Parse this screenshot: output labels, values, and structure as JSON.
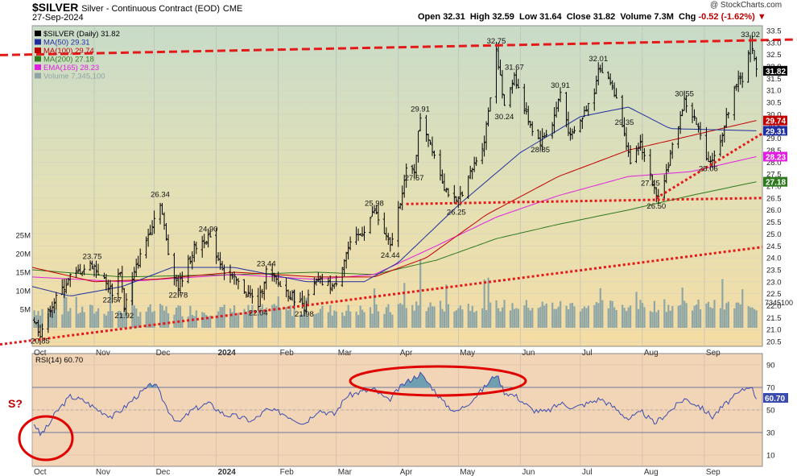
{
  "header": {
    "symbol": "$SILVER",
    "name": "Silver - Continuous Contract (EOD)",
    "exchange": "CME",
    "date": "27-Sep-2024",
    "open_label": "Open",
    "open": "32.31",
    "high_label": "High",
    "high": "32.59",
    "low_label": "Low",
    "low": "31.64",
    "close_label": "Close",
    "close": "31.82",
    "volume_label": "Volume",
    "volume": "7.3M",
    "chg_label": "Chg",
    "chg": "-0.52 (-1.62%)",
    "source": "@ StockCharts.com"
  },
  "chart_data": [
    {
      "type": "candlestick",
      "title": "$SILVER (Daily) 31.82",
      "legend": [
        {
          "label": "$SILVER (Daily) 31.82",
          "color": "#000000"
        },
        {
          "label": "MA(50) 29.31",
          "color": "#1f2fa0"
        },
        {
          "label": "MA(100) 29.74",
          "color": "#c00000"
        },
        {
          "label": "MA(200) 27.18",
          "color": "#2f7a1f"
        },
        {
          "label": "EMA(165) 28.23",
          "color": "#e020e0"
        },
        {
          "label": "Volume 7,345,100",
          "color": "#8fa6a6"
        }
      ],
      "legend_position": "top-left",
      "x_labels": [
        "Oct",
        "Nov",
        "Dec",
        "2024",
        "Feb",
        "Mar",
        "Apr",
        "May",
        "Jun",
        "Jul",
        "Aug",
        "Sep"
      ],
      "x_range": [
        "2023-10-01",
        "2024-09-30"
      ],
      "ylim": [
        20.3,
        33.7
      ],
      "y_ticks": [
        20.5,
        21.0,
        21.5,
        22.0,
        22.5,
        23.0,
        23.5,
        24.0,
        24.5,
        25.0,
        25.5,
        26.0,
        26.5,
        27.0,
        27.5,
        28.0,
        28.5,
        29.0,
        29.5,
        30.0,
        30.5,
        31.0,
        31.5,
        32.0,
        32.5,
        33.0,
        33.5
      ],
      "y_tick_labels": [
        "20.5",
        "21.0",
        "21.5",
        "22.0",
        "22.5",
        "23.0",
        "23.5",
        "24.0",
        "24.5",
        "25.0",
        "25.5",
        "26.0",
        "26.5",
        "27.0",
        "27.5",
        "28.0",
        "28.5",
        "29.0",
        "29.5",
        "30.0",
        "30.5",
        "31.0",
        "31.5",
        "32.0",
        "32.5",
        "33.0",
        "33.5"
      ],
      "volume_axis_labels": [
        "25M",
        "20M",
        "15M",
        "10M",
        "5M"
      ],
      "volume_ticks": [
        25,
        20,
        15,
        10,
        5
      ],
      "volume_last_label": "7345100",
      "price_keypoints": [
        [
          "2023-10-02",
          21.4
        ],
        [
          "2023-10-05",
          20.85
        ],
        [
          "2023-10-10",
          21.9
        ],
        [
          "2023-10-20",
          23.2
        ],
        [
          "2023-10-31",
          23.75
        ],
        [
          "2023-11-10",
          22.57
        ],
        [
          "2023-11-14",
          23.5
        ],
        [
          "2023-11-16",
          21.92
        ],
        [
          "2023-11-22",
          23.6
        ],
        [
          "2023-12-04",
          26.34
        ],
        [
          "2023-12-08",
          24.2
        ],
        [
          "2023-12-13",
          22.78
        ],
        [
          "2023-12-21",
          24.4
        ],
        [
          "2023-12-28",
          24.9
        ],
        [
          "2024-01-05",
          23.44
        ],
        [
          "2024-01-10",
          23.1
        ],
        [
          "2024-01-22",
          22.04
        ],
        [
          "2024-01-26",
          23.44
        ],
        [
          "2024-02-05",
          22.6
        ],
        [
          "2024-02-14",
          21.98
        ],
        [
          "2024-02-20",
          23.0
        ],
        [
          "2024-02-29",
          22.8
        ],
        [
          "2024-03-07",
          24.4
        ],
        [
          "2024-03-15",
          25.2
        ],
        [
          "2024-03-20",
          25.98
        ],
        [
          "2024-03-28",
          24.44
        ],
        [
          "2024-04-05",
          27.6
        ],
        [
          "2024-04-09",
          27.67
        ],
        [
          "2024-04-12",
          29.91
        ],
        [
          "2024-04-18",
          28.6
        ],
        [
          "2024-04-24",
          27.0
        ],
        [
          "2024-04-30",
          26.25
        ],
        [
          "2024-05-07",
          27.5
        ],
        [
          "2024-05-14",
          28.9
        ],
        [
          "2024-05-20",
          32.75
        ],
        [
          "2024-05-24",
          30.24
        ],
        [
          "2024-05-29",
          31.67
        ],
        [
          "2024-06-03",
          30.2
        ],
        [
          "2024-06-07",
          29.4
        ],
        [
          "2024-06-11",
          28.85
        ],
        [
          "2024-06-17",
          29.6
        ],
        [
          "2024-06-21",
          30.91
        ],
        [
          "2024-06-26",
          29.0
        ],
        [
          "2024-07-01",
          29.7
        ],
        [
          "2024-07-08",
          31.0
        ],
        [
          "2024-07-10",
          32.01
        ],
        [
          "2024-07-17",
          31.2
        ],
        [
          "2024-07-23",
          29.35
        ],
        [
          "2024-07-26",
          27.8
        ],
        [
          "2024-07-31",
          28.8
        ],
        [
          "2024-08-05",
          27.45
        ],
        [
          "2024-08-08",
          26.5
        ],
        [
          "2024-08-13",
          27.6
        ],
        [
          "2024-08-19",
          29.6
        ],
        [
          "2024-08-22",
          30.55
        ],
        [
          "2024-08-27",
          29.8
        ],
        [
          "2024-09-03",
          28.06
        ],
        [
          "2024-09-06",
          28.2
        ],
        [
          "2024-09-11",
          29.5
        ],
        [
          "2024-09-16",
          31.2
        ],
        [
          "2024-09-20",
          31.5
        ],
        [
          "2024-09-24",
          33.02
        ],
        [
          "2024-09-27",
          31.82
        ]
      ],
      "ma50_keypoints": [
        [
          "2023-10-01",
          22.8
        ],
        [
          "2023-10-20",
          22.4
        ],
        [
          "2023-11-15",
          22.8
        ],
        [
          "2023-12-10",
          23.6
        ],
        [
          "2024-01-10",
          23.6
        ],
        [
          "2024-02-15",
          23.0
        ],
        [
          "2024-03-15",
          23.0
        ],
        [
          "2024-04-01",
          23.8
        ],
        [
          "2024-05-01",
          26.2
        ],
        [
          "2024-06-01",
          28.4
        ],
        [
          "2024-07-01",
          29.9
        ],
        [
          "2024-07-25",
          30.3
        ],
        [
          "2024-08-15",
          29.4
        ],
        [
          "2024-09-27",
          29.31
        ]
      ],
      "ma100_keypoints": [
        [
          "2023-10-01",
          23.6
        ],
        [
          "2023-11-01",
          23.0
        ],
        [
          "2023-12-01",
          23.1
        ],
        [
          "2024-01-10",
          23.4
        ],
        [
          "2024-02-20",
          23.2
        ],
        [
          "2024-03-20",
          23.2
        ],
        [
          "2024-04-15",
          24.0
        ],
        [
          "2024-05-15",
          25.8
        ],
        [
          "2024-06-20",
          27.4
        ],
        [
          "2024-07-25",
          28.5
        ],
        [
          "2024-08-25",
          29.1
        ],
        [
          "2024-09-27",
          29.74
        ]
      ],
      "ma200_keypoints": [
        [
          "2023-10-01",
          23.5
        ],
        [
          "2023-11-15",
          23.2
        ],
        [
          "2024-01-10",
          23.3
        ],
        [
          "2024-02-20",
          23.4
        ],
        [
          "2024-03-20",
          23.3
        ],
        [
          "2024-04-20",
          23.9
        ],
        [
          "2024-05-20",
          24.8
        ],
        [
          "2024-06-20",
          25.4
        ],
        [
          "2024-07-25",
          26.0
        ],
        [
          "2024-08-25",
          26.6
        ],
        [
          "2024-09-27",
          27.18
        ]
      ],
      "ema165_keypoints": [
        [
          "2023-10-01",
          23.2
        ],
        [
          "2023-11-15",
          23.0
        ],
        [
          "2024-01-10",
          23.3
        ],
        [
          "2024-02-20",
          23.1
        ],
        [
          "2024-03-20",
          23.3
        ],
        [
          "2024-04-20",
          24.5
        ],
        [
          "2024-05-20",
          25.7
        ],
        [
          "2024-06-20",
          26.6
        ],
        [
          "2024-07-25",
          27.4
        ],
        [
          "2024-08-25",
          27.6
        ],
        [
          "2024-09-27",
          28.23
        ]
      ],
      "trendlines": [
        {
          "from": [
            "2023-10-01",
            32.5
          ],
          "to": [
            "2024-09-30",
            33.1
          ]
        },
        {
          "from": [
            "2023-10-01",
            20.55
          ],
          "to": [
            "2024-09-30",
            24.45
          ]
        },
        {
          "from": [
            "2024-04-05",
            26.25
          ],
          "to": [
            "2024-09-30",
            26.5
          ]
        },
        {
          "from": [
            "2024-08-08",
            26.5
          ],
          "to": [
            "2024-09-30",
            29.2
          ]
        }
      ],
      "data_labels": [
        {
          "date": "2023-10-05",
          "value": 20.85,
          "text": "20.85",
          "pos": "below"
        },
        {
          "date": "2023-10-31",
          "value": 23.75,
          "text": "23.75",
          "pos": "above"
        },
        {
          "date": "2023-11-10",
          "value": 22.57,
          "text": "22.57",
          "pos": "below"
        },
        {
          "date": "2023-11-16",
          "value": 21.92,
          "text": "21.92",
          "pos": "below"
        },
        {
          "date": "2023-12-04",
          "value": 26.34,
          "text": "26.34",
          "pos": "above"
        },
        {
          "date": "2023-12-13",
          "value": 22.78,
          "text": "22.78",
          "pos": "below"
        },
        {
          "date": "2023-12-28",
          "value": 24.9,
          "text": "24.90",
          "pos": "above"
        },
        {
          "date": "2024-01-26",
          "value": 23.44,
          "text": "23.44",
          "pos": "above"
        },
        {
          "date": "2024-01-22",
          "value": 22.04,
          "text": "22.04",
          "pos": "below"
        },
        {
          "date": "2024-02-14",
          "value": 21.98,
          "text": "21.98",
          "pos": "below"
        },
        {
          "date": "2024-03-20",
          "value": 25.98,
          "text": "25.98",
          "pos": "above"
        },
        {
          "date": "2024-03-28",
          "value": 24.44,
          "text": "24.44",
          "pos": "below"
        },
        {
          "date": "2024-04-09",
          "value": 27.67,
          "text": "27.67",
          "pos": "below"
        },
        {
          "date": "2024-04-12",
          "value": 29.91,
          "text": "29.91",
          "pos": "above"
        },
        {
          "date": "2024-04-30",
          "value": 26.25,
          "text": "26.25",
          "pos": "below"
        },
        {
          "date": "2024-05-20",
          "value": 32.75,
          "text": "32.75",
          "pos": "above"
        },
        {
          "date": "2024-05-24",
          "value": 30.24,
          "text": "30.24",
          "pos": "below"
        },
        {
          "date": "2024-05-29",
          "value": 31.67,
          "text": "31.67",
          "pos": "above"
        },
        {
          "date": "2024-06-11",
          "value": 28.85,
          "text": "28.85",
          "pos": "below"
        },
        {
          "date": "2024-06-21",
          "value": 30.91,
          "text": "30.91",
          "pos": "above"
        },
        {
          "date": "2024-07-10",
          "value": 32.01,
          "text": "32.01",
          "pos": "above"
        },
        {
          "date": "2024-07-23",
          "value": 29.35,
          "text": "29.35",
          "pos": "above"
        },
        {
          "date": "2024-08-05",
          "value": 27.45,
          "text": "27.45",
          "pos": "below"
        },
        {
          "date": "2024-08-08",
          "value": 26.5,
          "text": "26.50",
          "pos": "below"
        },
        {
          "date": "2024-08-22",
          "value": 30.55,
          "text": "30.55",
          "pos": "above"
        },
        {
          "date": "2024-09-03",
          "value": 28.06,
          "text": "28.06",
          "pos": "below"
        },
        {
          "date": "2024-09-24",
          "value": 33.02,
          "text": "33.02",
          "pos": "above"
        }
      ],
      "axis_badges": [
        {
          "text": "31.82",
          "value": 31.82,
          "color": "#000000"
        },
        {
          "text": "29.74",
          "value": 29.74,
          "color": "#c00000"
        },
        {
          "text": "29.31",
          "value": 29.31,
          "color": "#1f2fa0"
        },
        {
          "text": "28.23",
          "value": 28.23,
          "color": "#e020e0"
        },
        {
          "text": "27.18",
          "value": 27.18,
          "color": "#2f7a1f"
        }
      ]
    },
    {
      "type": "line",
      "title": "RSI(14) 60.70",
      "ylim": [
        0,
        100
      ],
      "y_ticks": [
        10,
        30,
        50,
        70,
        90
      ],
      "y_tick_labels": [
        "10",
        "30",
        "50",
        "70",
        "90"
      ],
      "overbought": 70,
      "oversold": 30,
      "last_value": 60.7,
      "last_label": "60.70",
      "rsi_keypoints": [
        [
          "2023-10-02",
          38
        ],
        [
          "2023-10-05",
          28
        ],
        [
          "2023-10-09",
          36
        ],
        [
          "2023-10-13",
          48
        ],
        [
          "2023-10-20",
          62
        ],
        [
          "2023-10-27",
          58
        ],
        [
          "2023-11-03",
          50
        ],
        [
          "2023-11-10",
          44
        ],
        [
          "2023-11-16",
          52
        ],
        [
          "2023-11-22",
          62
        ],
        [
          "2023-12-01",
          74
        ],
        [
          "2023-12-08",
          50
        ],
        [
          "2023-12-13",
          38
        ],
        [
          "2023-12-20",
          50
        ],
        [
          "2023-12-28",
          56
        ],
        [
          "2024-01-05",
          46
        ],
        [
          "2024-01-12",
          44
        ],
        [
          "2024-01-19",
          40
        ],
        [
          "2024-01-26",
          50
        ],
        [
          "2024-02-02",
          48
        ],
        [
          "2024-02-09",
          42
        ],
        [
          "2024-02-14",
          38
        ],
        [
          "2024-02-21",
          50
        ],
        [
          "2024-02-29",
          46
        ],
        [
          "2024-03-06",
          62
        ],
        [
          "2024-03-13",
          66
        ],
        [
          "2024-03-20",
          68
        ],
        [
          "2024-03-27",
          58
        ],
        [
          "2024-04-03",
          72
        ],
        [
          "2024-04-08",
          78
        ],
        [
          "2024-04-12",
          82
        ],
        [
          "2024-04-17",
          72
        ],
        [
          "2024-04-24",
          56
        ],
        [
          "2024-04-30",
          48
        ],
        [
          "2024-05-06",
          56
        ],
        [
          "2024-05-13",
          68
        ],
        [
          "2024-05-20",
          82
        ],
        [
          "2024-05-24",
          66
        ],
        [
          "2024-05-30",
          62
        ],
        [
          "2024-06-07",
          50
        ],
        [
          "2024-06-14",
          48
        ],
        [
          "2024-06-21",
          56
        ],
        [
          "2024-06-28",
          52
        ],
        [
          "2024-07-05",
          56
        ],
        [
          "2024-07-11",
          60
        ],
        [
          "2024-07-18",
          52
        ],
        [
          "2024-07-25",
          42
        ],
        [
          "2024-08-01",
          48
        ],
        [
          "2024-08-07",
          38
        ],
        [
          "2024-08-14",
          48
        ],
        [
          "2024-08-22",
          60
        ],
        [
          "2024-08-29",
          54
        ],
        [
          "2024-09-05",
          44
        ],
        [
          "2024-09-12",
          56
        ],
        [
          "2024-09-19",
          66
        ],
        [
          "2024-09-24",
          72
        ],
        [
          "2024-09-27",
          60.7
        ]
      ]
    }
  ],
  "annotations": [
    {
      "type": "ellipse",
      "panel": "rsi",
      "around": "2023-10 RSI low"
    },
    {
      "type": "ellipse",
      "panel": "rsi",
      "around": "2024-04 to 2024-05 RSI highs"
    },
    {
      "type": "text",
      "text": "S?",
      "panel": "rsi"
    }
  ],
  "colors": {
    "price_bg_top": "#c8dac8",
    "price_bg_bottom": "#f2dca0",
    "rsi_bg": "#f0d3b3",
    "trendline": "#e41a1a",
    "volume": "#8fa6a6",
    "rsi_line": "#3b4cb0",
    "rsi_fill": "#6f9fb0"
  }
}
